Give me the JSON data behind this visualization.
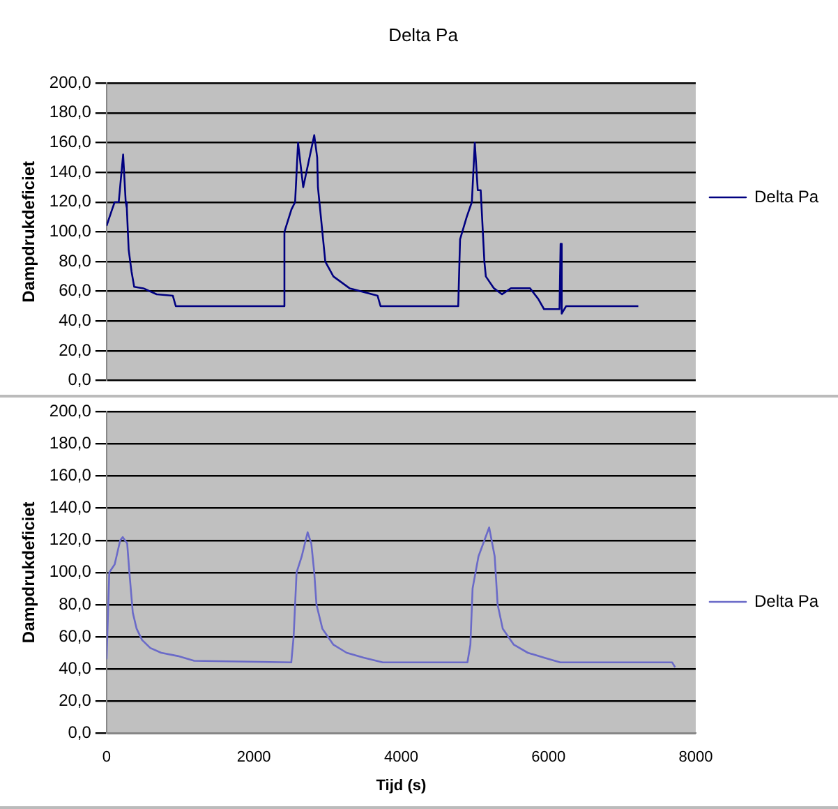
{
  "chart_data": [
    {
      "type": "line",
      "title": "Delta Pa",
      "ylabel": "Dampdrukdeficiet",
      "legend": "right",
      "grid": "y",
      "tick_labels": "y",
      "xlim": [
        0,
        8000
      ],
      "ylim": [
        0,
        200
      ],
      "yticks": [
        {
          "value": 0,
          "label": "0,0"
        },
        {
          "value": 20,
          "label": "20,0"
        },
        {
          "value": 40,
          "label": "40,0"
        },
        {
          "value": 60,
          "label": "60,0"
        },
        {
          "value": 80,
          "label": "80,0"
        },
        {
          "value": 100,
          "label": "100,0"
        },
        {
          "value": 120,
          "label": "120,0"
        },
        {
          "value": 140,
          "label": "140,0"
        },
        {
          "value": 160,
          "label": "160,0"
        },
        {
          "value": 180,
          "label": "180,0"
        },
        {
          "value": 200,
          "label": "200,0"
        }
      ],
      "series": [
        {
          "name": "Delta Pa",
          "color": "#000080",
          "x": [
            0,
            75,
            110,
            165,
            225,
            260,
            275,
            300,
            340,
            375,
            500,
            680,
            900,
            940,
            2400,
            2415,
            2510,
            2560,
            2600,
            2670,
            2820,
            2860,
            2870,
            2970,
            3080,
            3300,
            3680,
            3720,
            4775,
            4800,
            4890,
            4960,
            5000,
            5040,
            5080,
            5130,
            5150,
            5260,
            5370,
            5490,
            5750,
            5860,
            5940,
            6150,
            6165,
            6180,
            6240,
            7220
          ],
          "values": [
            104,
            115,
            120,
            120,
            152,
            120,
            116,
            88,
            73,
            63,
            62,
            58,
            57,
            50,
            50,
            100,
            115,
            120,
            160,
            130,
            165,
            150,
            130,
            80,
            70,
            62,
            57,
            50,
            50,
            95,
            110,
            120,
            160,
            128,
            128,
            80,
            70,
            62,
            58,
            62,
            62,
            55,
            48,
            48,
            92,
            45,
            50,
            50
          ]
        }
      ]
    },
    {
      "type": "line",
      "xlabel": "Tijd (s)",
      "ylabel": "Dampdrukdeficiet",
      "legend": "right",
      "grid": "y",
      "xlim": [
        0,
        8000
      ],
      "ylim": [
        0,
        200
      ],
      "xticks": [
        0,
        2000,
        4000,
        6000,
        8000
      ],
      "yticks": [
        {
          "value": 0,
          "label": "0,0"
        },
        {
          "value": 20,
          "label": "20,0"
        },
        {
          "value": 40,
          "label": "40,0"
        },
        {
          "value": 60,
          "label": "60,0"
        },
        {
          "value": 80,
          "label": "80,0"
        },
        {
          "value": 100,
          "label": "100,0"
        },
        {
          "value": 120,
          "label": "120,0"
        },
        {
          "value": 140,
          "label": "140,0"
        },
        {
          "value": 160,
          "label": "160,0"
        },
        {
          "value": 180,
          "label": "180,0"
        },
        {
          "value": 200,
          "label": "200,0"
        }
      ],
      "series": [
        {
          "name": "Delta Pa",
          "color": "#6a6ac8",
          "x": [
            0,
            37,
            110,
            185,
            220,
            280,
            310,
            356,
            408,
            482,
            594,
            742,
            965,
            1190,
            2508,
            2540,
            2580,
            2650,
            2730,
            2780,
            2820,
            2850,
            2930,
            3080,
            3260,
            3490,
            3750,
            4900,
            4940,
            4970,
            5050,
            5195,
            5270,
            5310,
            5380,
            5530,
            5720,
            5940,
            6160,
            7680,
            7720
          ],
          "values": [
            46,
            100,
            105,
            120,
            122,
            118,
            100,
            75,
            65,
            58,
            53,
            50,
            48,
            45,
            44,
            60,
            100,
            110,
            125,
            118,
            100,
            80,
            65,
            55,
            50,
            47,
            44,
            44,
            55,
            90,
            110,
            128,
            110,
            80,
            65,
            55,
            50,
            47,
            44,
            44,
            41
          ]
        }
      ]
    }
  ]
}
